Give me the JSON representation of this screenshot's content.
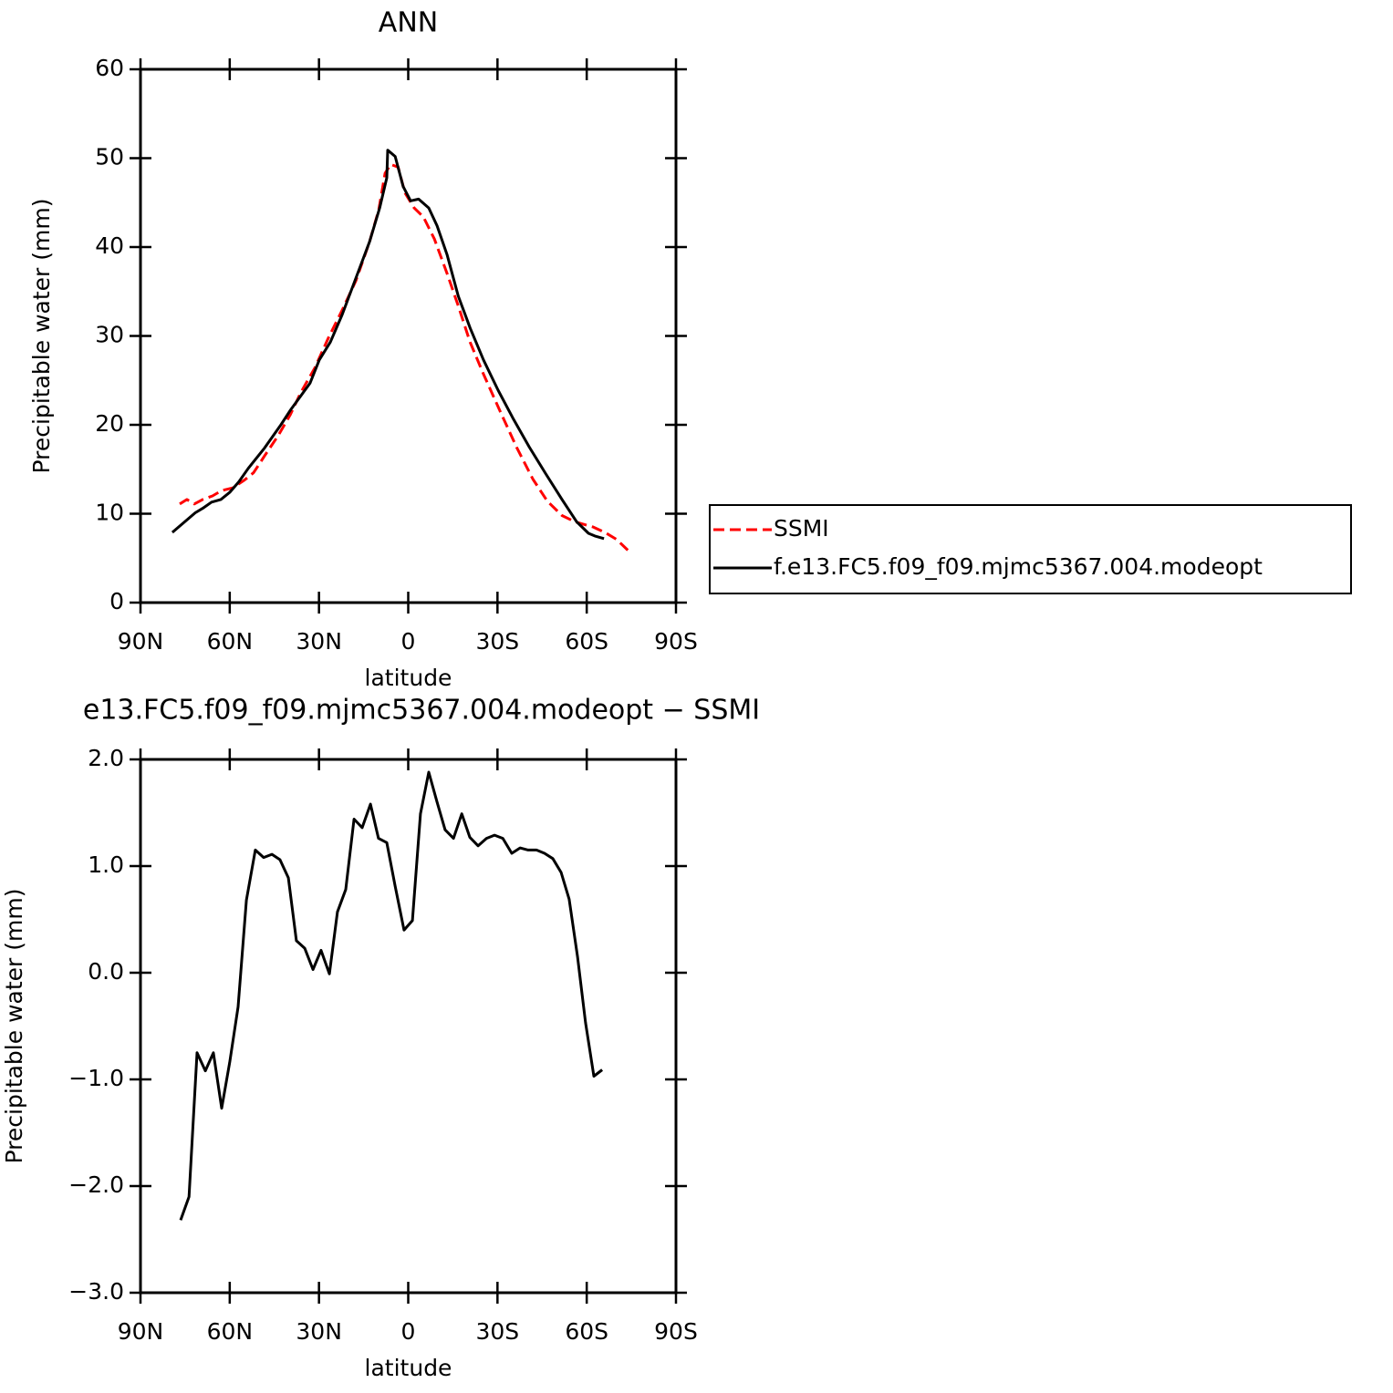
{
  "chart_data": [
    {
      "type": "line",
      "title": "ANN",
      "ylabel": "Precipitable water (mm)",
      "xlabel": "latitude",
      "xlim": [
        90,
        -90
      ],
      "xticks": [
        {
          "value": 90,
          "label": "90N"
        },
        {
          "value": 60,
          "label": "60N"
        },
        {
          "value": 30,
          "label": "30N"
        },
        0,
        {
          "value": -30,
          "label": "30S"
        },
        {
          "value": -60,
          "label": "60S"
        },
        {
          "value": -90,
          "label": "90S"
        }
      ],
      "ylim": [
        0,
        60
      ],
      "yticks": [
        0,
        10,
        20,
        30,
        40,
        50,
        60
      ],
      "legend": "outside-right",
      "series": [
        {
          "name": "SSMI",
          "color": "#ff0000",
          "dashed": true,
          "x": [
            76.8,
            74.4,
            71.9,
            69.1,
            65.8,
            62.7,
            59.0,
            55.0,
            52.0,
            48.3,
            43.7,
            39.7,
            36.0,
            31.4,
            26.8,
            22.2,
            17.6,
            13.0,
            9.9,
            7.8,
            5.9,
            3.4,
            1.1,
            -2.0,
            -5.1,
            -8.8,
            -13.1,
            -16.8,
            -20.8,
            -25.3,
            -30.8,
            -36.4,
            -41.9,
            -46.8,
            -51.7,
            -56.0,
            -62.2,
            -66.1,
            -70.1,
            -73.8
          ],
          "values": [
            11.1,
            11.6,
            11.1,
            11.6,
            12.0,
            12.6,
            12.9,
            13.8,
            14.6,
            16.5,
            18.8,
            21.1,
            23.7,
            26.4,
            29.8,
            32.9,
            36.2,
            40.6,
            44.2,
            48.3,
            49.3,
            49.0,
            46.1,
            44.4,
            43.4,
            40.9,
            37.0,
            33.4,
            29.3,
            25.7,
            21.6,
            17.5,
            13.9,
            11.4,
            9.8,
            9.1,
            8.5,
            7.9,
            7.1,
            5.9
          ]
        },
        {
          "name": "f.e13.FC5.f09_f09.mjmc5367.004.modeopt",
          "color": "#000000",
          "dashed": false,
          "x": [
            79.3,
            71.6,
            69.1,
            66.1,
            63.0,
            60.0,
            56.9,
            53.8,
            48.3,
            42.8,
            39.7,
            36.0,
            33.0,
            29.9,
            26.2,
            22.2,
            17.6,
            13.0,
            9.6,
            7.2,
            6.9,
            4.4,
            1.7,
            -0.8,
            -3.5,
            -6.9,
            -9.7,
            -13.1,
            -16.8,
            -20.8,
            -25.3,
            -30.2,
            -35.1,
            -40.7,
            -46.2,
            -51.7,
            -56.6,
            -60.6,
            -62.7,
            -65.8
          ],
          "values": [
            7.9,
            10.1,
            10.6,
            11.3,
            11.6,
            12.4,
            13.6,
            15.1,
            17.4,
            20.0,
            21.6,
            23.3,
            24.7,
            27.3,
            29.3,
            32.4,
            36.5,
            40.6,
            44.4,
            47.8,
            50.9,
            50.2,
            46.8,
            45.2,
            45.4,
            44.4,
            42.4,
            39.1,
            34.5,
            30.9,
            27.3,
            23.9,
            20.8,
            17.5,
            14.5,
            11.6,
            9.1,
            7.8,
            7.5,
            7.2
          ]
        }
      ]
    },
    {
      "type": "line",
      "title": "e13.FC5.f09_f09.mjmc5367.004.modeopt − SSMI",
      "ylabel": "Precipitable water (mm)",
      "xlabel": "latitude",
      "xlim": [
        90,
        -90
      ],
      "xticks": [
        {
          "value": 90,
          "label": "90N"
        },
        {
          "value": 60,
          "label": "60N"
        },
        {
          "value": 30,
          "label": "30N"
        },
        0,
        {
          "value": -30,
          "label": "30S"
        },
        {
          "value": -60,
          "label": "60S"
        },
        {
          "value": -90,
          "label": "90S"
        }
      ],
      "ylim": [
        -3,
        2
      ],
      "yticks": [
        {
          "value": -3,
          "label": "−3.0"
        },
        {
          "value": -2,
          "label": "−2.0"
        },
        {
          "value": -1,
          "label": "−1.0"
        },
        {
          "value": 0,
          "label": "0.0"
        },
        {
          "value": 1,
          "label": "1.0"
        },
        {
          "value": 2,
          "label": "2.0"
        }
      ],
      "series": [
        {
          "color": "#000000",
          "dashed": false,
          "x": [
            76.5,
            73.7,
            71.0,
            68.2,
            65.5,
            62.7,
            60.0,
            57.2,
            54.4,
            51.4,
            48.6,
            45.8,
            43.1,
            40.3,
            37.6,
            34.8,
            32.0,
            29.3,
            26.5,
            23.8,
            21.0,
            18.2,
            15.5,
            12.7,
            10.0,
            7.2,
            4.4,
            1.4,
            -1.4,
            -4.1,
            -6.9,
            -9.7,
            -12.4,
            -15.2,
            -18.0,
            -20.7,
            -23.5,
            -26.3,
            -29.0,
            -31.8,
            -34.8,
            -37.6,
            -40.3,
            -43.1,
            -45.8,
            -48.6,
            -51.4,
            -54.1,
            -56.9,
            -59.6,
            -62.4,
            -65.2
          ],
          "values": [
            -2.32,
            -2.1,
            -0.75,
            -0.92,
            -0.75,
            -1.27,
            -0.84,
            -0.32,
            0.68,
            1.15,
            1.08,
            1.11,
            1.06,
            0.89,
            0.3,
            0.23,
            0.03,
            0.21,
            -0.01,
            0.57,
            0.78,
            1.44,
            1.36,
            1.58,
            1.26,
            1.22,
            0.81,
            0.4,
            0.49,
            1.49,
            1.88,
            1.6,
            1.34,
            1.26,
            1.49,
            1.27,
            1.19,
            1.26,
            1.29,
            1.26,
            1.12,
            1.17,
            1.15,
            1.15,
            1.12,
            1.07,
            0.94,
            0.69,
            0.15,
            -0.47,
            -0.97,
            -0.91
          ]
        }
      ]
    }
  ]
}
